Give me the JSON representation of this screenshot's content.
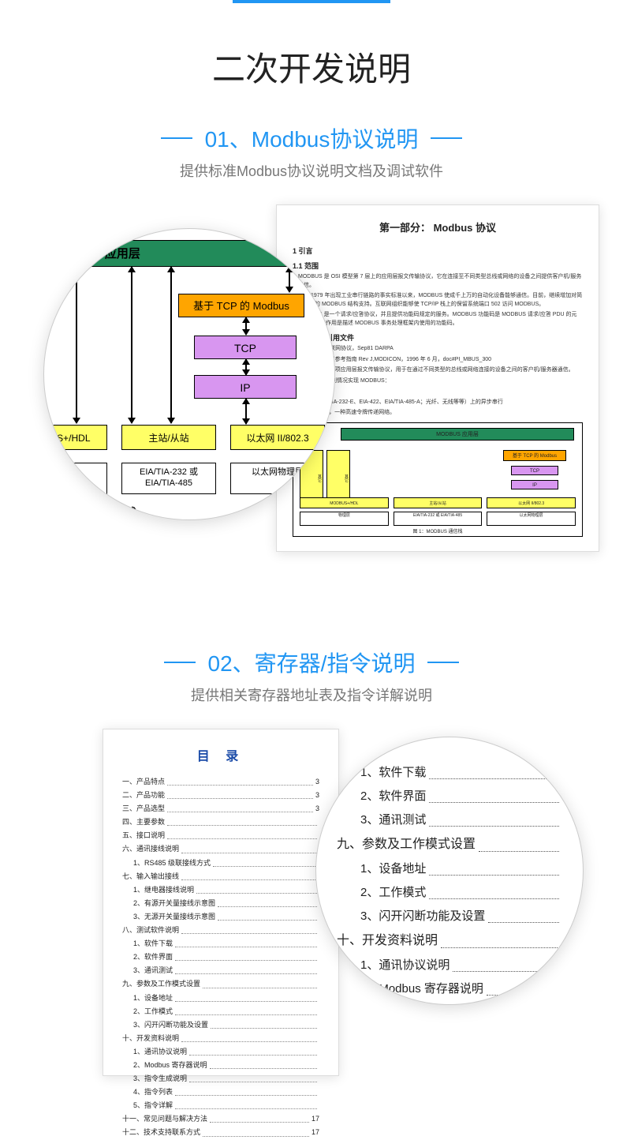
{
  "accent_color": "#2196f3",
  "main_title": "二次开发说明",
  "section01": {
    "title": "01、Modbus协议说明",
    "subtitle": "提供标准Modbus协议说明文档及调试软件",
    "diagram": {
      "app_layer": "MODBUS 应用层",
      "tcp_modbus": "基于 TCP 的 Modbus",
      "tcp": "TCP",
      "ip": "IP",
      "row": [
        "ODBUS+/HDL",
        "主站/从站",
        "以太网 II/802.3"
      ],
      "phys": [
        "物理层",
        "EIA/TIA-232 或\nEIA/TIA-485",
        "以太网物理层"
      ],
      "caption": "图 1：MODBUS 通信栈"
    },
    "doc": {
      "title": "第一部分： Modbus 协议",
      "h1": "1  引言",
      "h2": "1.1  范围",
      "p1": "MODBUS 是 OSI 模型第 7 层上的应用层报文传输协议，它在连接至不同类型总线或网络的设备之间提供客户机/服务器通信。",
      "p2": "自从 1979 年出现工业串行链路的事实标准以来，MODBUS 使成千上万的自动化设备能够通信。目前，继续增加对简单而高效的 MODBUS 结构支持。互联网组织能够使 TCP/IP 栈上的保留系统端口 502 访问 MODBUS。",
      "p3": "MODBUS 是一个请求/应答协议，并且提供功能码规定的服务。MODBUS 功能码是 MODBUS 请求/应答 PDU 的元素。本文件的作用是描述 MODBUS 事务处理框架内使用的功能码。",
      "h3": "1.2  规范性引用文件",
      "r1": "RFC791，互联网协议，Sep81 DARPA",
      "r2": "MODBUS 协议参考指南 Rev J,MODICON，1996 年 6 月，doc#PI_MBUS_300",
      "r3": "MODBUS 是一项应用层报文传输协议，用于在通过不同类型的总线或网络连接的设备之间的客户机/服务器通信。",
      "r4": "目前，使用下列情况实现 MODBUS：",
      "r5": "· TCP/IP。",
      "r6": "· 串行：EIA/TIA-232-E、EIA-422、EIA/TIA-485-A；光纤、无线等等）上的异步串行",
      "r7": "· MODBUS+，一种高速令牌传递网络。",
      "mini": {
        "app": "MODBUS 应用层",
        "orange": "基于 TCP 的 Modbus",
        "tcp": "TCP",
        "ip": "IP",
        "left1": "其它",
        "left2": "其它",
        "row": [
          "MODBUS+/HDL",
          "主站/从站",
          "以太网 II/802.3"
        ],
        "phys": [
          "物理层",
          "EIA/TIA-232 或\nEIA/TIA-485",
          "以太网物理层"
        ],
        "caption": "图 1：MODBUS 通信栈"
      }
    }
  },
  "section02": {
    "title": "02、寄存器/指令说明",
    "subtitle": "提供相关寄存器地址表及指令详解说明",
    "toc_title": "目  录",
    "toc": [
      {
        "lv": 1,
        "t": "一、产品特点",
        "p": "3"
      },
      {
        "lv": 1,
        "t": "二、产品功能",
        "p": "3"
      },
      {
        "lv": 1,
        "t": "三、产品选型",
        "p": "3"
      },
      {
        "lv": 1,
        "t": "四、主要参数",
        "p": ""
      },
      {
        "lv": 1,
        "t": "五、接口说明",
        "p": ""
      },
      {
        "lv": 1,
        "t": "六、通讯接线说明",
        "p": ""
      },
      {
        "lv": 2,
        "t": "1、RS485 级联接线方式",
        "p": ""
      },
      {
        "lv": 1,
        "t": "七、输入输出接线",
        "p": ""
      },
      {
        "lv": 2,
        "t": "1、继电器接线说明",
        "p": ""
      },
      {
        "lv": 2,
        "t": "2、有源开关量接线示意图",
        "p": ""
      },
      {
        "lv": 2,
        "t": "3、无源开关量接线示意图",
        "p": ""
      },
      {
        "lv": 1,
        "t": "八、测试软件说明",
        "p": ""
      },
      {
        "lv": 2,
        "t": "1、软件下载",
        "p": ""
      },
      {
        "lv": 2,
        "t": "2、软件界面",
        "p": ""
      },
      {
        "lv": 2,
        "t": "3、通讯测试",
        "p": ""
      },
      {
        "lv": 1,
        "t": "九、参数及工作模式设置",
        "p": ""
      },
      {
        "lv": 2,
        "t": "1、设备地址",
        "p": ""
      },
      {
        "lv": 2,
        "t": "2、工作模式",
        "p": ""
      },
      {
        "lv": 2,
        "t": "3、闪开闪断功能及设置",
        "p": ""
      },
      {
        "lv": 1,
        "t": "十、开发资料说明",
        "p": ""
      },
      {
        "lv": 2,
        "t": "1、通讯协议说明",
        "p": ""
      },
      {
        "lv": 2,
        "t": "2、Modbus 寄存器说明",
        "p": ""
      },
      {
        "lv": 2,
        "t": "3、指令生成说明",
        "p": ""
      },
      {
        "lv": 2,
        "t": "4、指令列表",
        "p": ""
      },
      {
        "lv": 2,
        "t": "5、指令详解",
        "p": ""
      },
      {
        "lv": 1,
        "t": "十一、常见问题与解决方法",
        "p": "17"
      },
      {
        "lv": 1,
        "t": "十二、技术支持联系方式",
        "p": "17"
      }
    ],
    "zoom": [
      {
        "lv": 2,
        "t": "1、软件下载"
      },
      {
        "lv": 2,
        "t": "2、软件界面"
      },
      {
        "lv": 2,
        "t": "3、通讯测试"
      },
      {
        "lv": 1,
        "t": "九、参数及工作模式设置"
      },
      {
        "lv": 2,
        "t": "1、设备地址"
      },
      {
        "lv": 2,
        "t": "2、工作模式"
      },
      {
        "lv": 2,
        "t": "3、闪开闪断功能及设置"
      },
      {
        "lv": 1,
        "t": "十、开发资料说明"
      },
      {
        "lv": 2,
        "t": "1、通讯协议说明"
      },
      {
        "lv": 2,
        "t": "2、Modbus 寄存器说明"
      },
      {
        "lv": 2,
        "t": "3、指令生成说明"
      },
      {
        "lv": 2,
        "t": "4、指令列表"
      },
      {
        "lv": 2,
        "t": "5、指令详解"
      }
    ]
  }
}
